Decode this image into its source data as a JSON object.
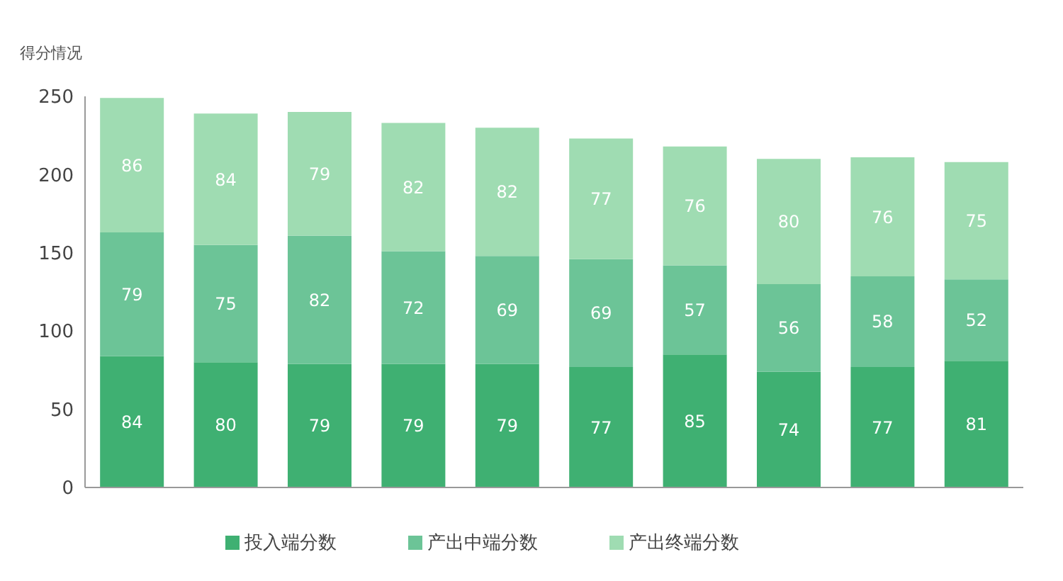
{
  "chart_data": {
    "type": "bar",
    "ylabel": "得分情况",
    "stacked": true,
    "categories": [
      null,
      null,
      null,
      null,
      null,
      null,
      null,
      null,
      null,
      null
    ],
    "series": [
      {
        "name": "投入端分数",
        "color": "#3fb072",
        "values": [
          84,
          80,
          79,
          79,
          79,
          77,
          85,
          74,
          77,
          81
        ]
      },
      {
        "name": "产出中端分数",
        "color": "#6cc497",
        "values": [
          79,
          75,
          82,
          72,
          69,
          69,
          57,
          56,
          58,
          52
        ]
      },
      {
        "name": "产出终端分数",
        "color": "#9fdcb2",
        "values": [
          86,
          84,
          79,
          82,
          82,
          77,
          76,
          80,
          76,
          75
        ]
      }
    ],
    "ylim": [
      0,
      250
    ],
    "yticks": [
      0,
      50,
      100,
      150,
      200,
      250
    ],
    "grid": false,
    "legend": "bottom",
    "data_labels": true
  }
}
